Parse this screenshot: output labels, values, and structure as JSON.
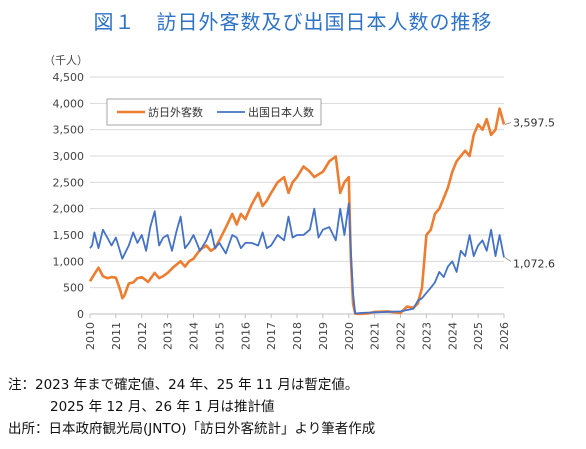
{
  "title": "図１　訪日外客数及び出国日本人数の推移",
  "notes": {
    "line1": "注：2023 年まで確定値、24 年、25 年 11 月は暫定値。",
    "line2": "2025 年 12 月、26 年 1 月は推計値",
    "source": "出所：日本政府観光局(JNTO)「訪日外客統計」より筆者作成"
  },
  "chart_data": {
    "type": "line",
    "title": "図１　訪日外客数及び出国日本人数の推移",
    "unit_label": "（千人）",
    "ylim": [
      0,
      4500
    ],
    "y_ticks": [
      0,
      500,
      1000,
      1500,
      2000,
      2500,
      3000,
      3500,
      4000,
      4500
    ],
    "xlim": [
      2010,
      2026
    ],
    "x_ticks": [
      "2010",
      "2011",
      "2012",
      "2013",
      "2014",
      "2015",
      "2016",
      "2017",
      "2018",
      "2019",
      "2020",
      "2021",
      "2022",
      "2023",
      "2024",
      "2025",
      "2026"
    ],
    "grid": "horizontal",
    "legend_position": "top-left",
    "series": [
      {
        "name": "訪日外客数",
        "color": "#ed7d31",
        "end_label": "3,597.5",
        "x": [
          2010.0,
          2010.17,
          2010.33,
          2010.5,
          2010.67,
          2010.83,
          2011.0,
          2011.17,
          2011.25,
          2011.33,
          2011.5,
          2011.67,
          2011.83,
          2012.0,
          2012.25,
          2012.5,
          2012.67,
          2012.83,
          2013.0,
          2013.25,
          2013.5,
          2013.67,
          2013.83,
          2014.0,
          2014.25,
          2014.5,
          2014.67,
          2014.83,
          2015.0,
          2015.25,
          2015.5,
          2015.67,
          2015.83,
          2016.0,
          2016.25,
          2016.5,
          2016.67,
          2016.83,
          2017.0,
          2017.25,
          2017.5,
          2017.67,
          2017.83,
          2018.0,
          2018.25,
          2018.5,
          2018.67,
          2018.83,
          2019.0,
          2019.25,
          2019.5,
          2019.67,
          2019.83,
          2020.0,
          2020.08,
          2020.17,
          2020.25,
          2020.33,
          2020.5,
          2020.75,
          2021.0,
          2021.5,
          2021.83,
          2022.0,
          2022.25,
          2022.5,
          2022.67,
          2022.83,
          2023.0,
          2023.17,
          2023.33,
          2023.5,
          2023.67,
          2023.83,
          2024.0,
          2024.17,
          2024.33,
          2024.5,
          2024.67,
          2024.83,
          2025.0,
          2025.17,
          2025.33,
          2025.5,
          2025.67,
          2025.83,
          2026.0
        ],
        "values": [
          620,
          760,
          880,
          720,
          680,
          700,
          690,
          450,
          300,
          350,
          580,
          600,
          680,
          700,
          610,
          780,
          680,
          720,
          780,
          900,
          1000,
          900,
          1000,
          1050,
          1220,
          1300,
          1200,
          1250,
          1400,
          1640,
          1900,
          1700,
          1900,
          1800,
          2080,
          2300,
          2050,
          2150,
          2300,
          2500,
          2600,
          2300,
          2500,
          2600,
          2800,
          2700,
          2600,
          2650,
          2700,
          2900,
          2990,
          2300,
          2500,
          2600,
          1080,
          190,
          8,
          2,
          3,
          10,
          40,
          50,
          30,
          20,
          140,
          120,
          200,
          500,
          1500,
          1600,
          1900,
          2000,
          2200,
          2400,
          2700,
          2900,
          3000,
          3100,
          3000,
          3400,
          3600,
          3500,
          3700,
          3400,
          3500,
          3900,
          3597.5
        ]
      },
      {
        "name": "出国日本人数",
        "color": "#4472c4",
        "end_label": "1,072.6",
        "x": [
          2010.0,
          2010.08,
          2010.17,
          2010.33,
          2010.5,
          2010.67,
          2010.83,
          2011.0,
          2011.25,
          2011.5,
          2011.67,
          2011.83,
          2012.0,
          2012.17,
          2012.33,
          2012.5,
          2012.67,
          2012.83,
          2013.0,
          2013.17,
          2013.33,
          2013.5,
          2013.67,
          2013.83,
          2014.0,
          2014.25,
          2014.5,
          2014.67,
          2014.83,
          2015.0,
          2015.25,
          2015.5,
          2015.67,
          2015.83,
          2016.0,
          2016.25,
          2016.5,
          2016.67,
          2016.83,
          2017.0,
          2017.25,
          2017.5,
          2017.67,
          2017.83,
          2018.0,
          2018.25,
          2018.5,
          2018.67,
          2018.83,
          2019.0,
          2019.25,
          2019.5,
          2019.67,
          2019.83,
          2020.0,
          2020.08,
          2020.17,
          2020.25,
          2020.5,
          2021.0,
          2021.5,
          2022.0,
          2022.5,
          2022.67,
          2022.83,
          2023.0,
          2023.17,
          2023.33,
          2023.5,
          2023.67,
          2023.83,
          2024.0,
          2024.17,
          2024.33,
          2024.5,
          2024.67,
          2024.83,
          2025.0,
          2025.17,
          2025.33,
          2025.5,
          2025.67,
          2025.83,
          2026.0
        ],
        "values": [
          1250,
          1300,
          1550,
          1250,
          1600,
          1450,
          1300,
          1450,
          1050,
          1300,
          1550,
          1350,
          1500,
          1200,
          1650,
          1950,
          1300,
          1450,
          1500,
          1200,
          1550,
          1850,
          1250,
          1350,
          1500,
          1200,
          1400,
          1600,
          1250,
          1350,
          1150,
          1500,
          1450,
          1250,
          1350,
          1350,
          1300,
          1550,
          1250,
          1300,
          1500,
          1400,
          1850,
          1450,
          1500,
          1500,
          1600,
          2000,
          1450,
          1600,
          1650,
          1400,
          2000,
          1500,
          2100,
          1200,
          380,
          10,
          20,
          30,
          40,
          50,
          100,
          250,
          300,
          400,
          500,
          600,
          800,
          700,
          900,
          1000,
          800,
          1200,
          1100,
          1500,
          1100,
          1300,
          1400,
          1200,
          1600,
          1100,
          1500,
          1072.6
        ]
      }
    ]
  }
}
